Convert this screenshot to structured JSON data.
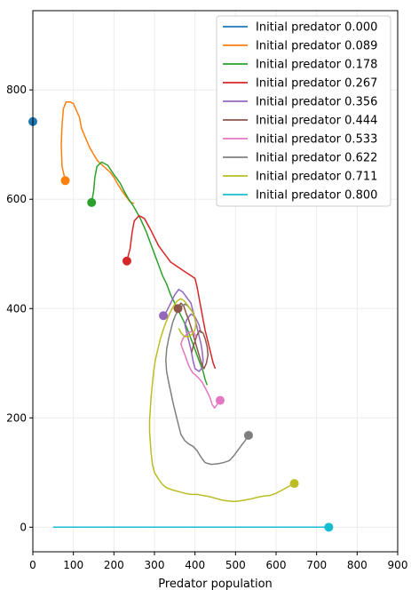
{
  "chart_data": {
    "type": "line",
    "title": "",
    "xlabel": "Predator population",
    "ylabel": "",
    "xlim": [
      0,
      900
    ],
    "ylim": [
      -45,
      945
    ],
    "xticks": [
      0,
      100,
      200,
      300,
      400,
      500,
      600,
      700,
      800,
      900
    ],
    "yticks": [
      0,
      200,
      400,
      600,
      800
    ],
    "grid": true,
    "legend_position": "top-right",
    "series": [
      {
        "name": "Initial predator 0.000",
        "color": "#1f77b4",
        "points": [
          [
            0,
            742
          ]
        ],
        "end": [
          0,
          742
        ]
      },
      {
        "name": "Initial predator 0.089",
        "color": "#ff7f0e",
        "points": [
          [
            80,
            634
          ],
          [
            72,
            660
          ],
          [
            70,
            700
          ],
          [
            72,
            735
          ],
          [
            75,
            765
          ],
          [
            82,
            778
          ],
          [
            92,
            778
          ],
          [
            100,
            775
          ],
          [
            106,
            765
          ],
          [
            115,
            750
          ],
          [
            120,
            730
          ],
          [
            130,
            712
          ],
          [
            140,
            695
          ],
          [
            150,
            682
          ],
          [
            160,
            670
          ],
          [
            175,
            660
          ],
          [
            190,
            650
          ],
          [
            200,
            640
          ],
          [
            210,
            627
          ],
          [
            220,
            615
          ],
          [
            230,
            605
          ],
          [
            240,
            595
          ],
          [
            250,
            592
          ]
        ],
        "end": [
          80,
          634
        ]
      },
      {
        "name": "Initial predator 0.178",
        "color": "#2ca02c",
        "points": [
          [
            145,
            594
          ],
          [
            150,
            615
          ],
          [
            153,
            640
          ],
          [
            158,
            660
          ],
          [
            170,
            668
          ],
          [
            185,
            662
          ],
          [
            200,
            645
          ],
          [
            215,
            630
          ],
          [
            225,
            615
          ],
          [
            235,
            602
          ],
          [
            250,
            585
          ],
          [
            265,
            565
          ],
          [
            280,
            540
          ],
          [
            290,
            520
          ],
          [
            300,
            500
          ],
          [
            310,
            480
          ],
          [
            320,
            460
          ],
          [
            330,
            445
          ],
          [
            340,
            425
          ],
          [
            350,
            410
          ],
          [
            360,
            395
          ],
          [
            370,
            380
          ],
          [
            380,
            365
          ],
          [
            390,
            345
          ],
          [
            400,
            325
          ],
          [
            410,
            305
          ],
          [
            420,
            285
          ],
          [
            425,
            270
          ],
          [
            430,
            260
          ]
        ],
        "end": [
          145,
          594
        ]
      },
      {
        "name": "Initial predator 0.267",
        "color": "#d62728",
        "points": [
          [
            232,
            487
          ],
          [
            240,
            510
          ],
          [
            245,
            540
          ],
          [
            250,
            560
          ],
          [
            262,
            570
          ],
          [
            275,
            565
          ],
          [
            290,
            545
          ],
          [
            300,
            530
          ],
          [
            310,
            515
          ],
          [
            320,
            505
          ],
          [
            330,
            495
          ],
          [
            340,
            485
          ],
          [
            350,
            480
          ],
          [
            360,
            475
          ],
          [
            370,
            470
          ],
          [
            380,
            465
          ],
          [
            390,
            460
          ],
          [
            400,
            455
          ],
          [
            405,
            440
          ],
          [
            410,
            420
          ],
          [
            415,
            400
          ],
          [
            420,
            380
          ],
          [
            425,
            360
          ],
          [
            430,
            345
          ],
          [
            435,
            330
          ],
          [
            440,
            315
          ],
          [
            445,
            300
          ],
          [
            450,
            290
          ]
        ],
        "end": [
          232,
          487
        ]
      },
      {
        "name": "Initial predator 0.356",
        "color": "#9467bd",
        "points": [
          [
            322,
            387
          ],
          [
            330,
            395
          ],
          [
            340,
            410
          ],
          [
            350,
            425
          ],
          [
            360,
            435
          ],
          [
            370,
            430
          ],
          [
            380,
            420
          ],
          [
            390,
            410
          ],
          [
            395,
            395
          ],
          [
            400,
            380
          ],
          [
            405,
            365
          ],
          [
            410,
            350
          ],
          [
            415,
            335
          ],
          [
            418,
            320
          ],
          [
            420,
            305
          ],
          [
            418,
            292
          ],
          [
            410,
            285
          ],
          [
            400,
            290
          ],
          [
            395,
            305
          ],
          [
            390,
            325
          ],
          [
            385,
            340
          ],
          [
            380,
            355
          ],
          [
            375,
            370
          ],
          [
            380,
            380
          ],
          [
            390,
            390
          ],
          [
            400,
            385
          ],
          [
            410,
            370
          ],
          [
            415,
            355
          ]
        ],
        "end": [
          322,
          387
        ]
      },
      {
        "name": "Initial predator 0.444",
        "color": "#8c564b",
        "points": [
          [
            358,
            400
          ],
          [
            365,
            410
          ],
          [
            372,
            405
          ],
          [
            378,
            392
          ],
          [
            385,
            378
          ],
          [
            392,
            362
          ],
          [
            398,
            346
          ],
          [
            404,
            330
          ],
          [
            410,
            315
          ],
          [
            416,
            300
          ],
          [
            422,
            290
          ],
          [
            428,
            300
          ],
          [
            432,
            315
          ],
          [
            430,
            330
          ],
          [
            425,
            345
          ],
          [
            420,
            355
          ],
          [
            412,
            360
          ],
          [
            405,
            352
          ],
          [
            400,
            340
          ],
          [
            395,
            330
          ],
          [
            392,
            320
          ]
        ],
        "end": [
          358,
          400
        ]
      },
      {
        "name": "Initial predator 0.533",
        "color": "#e377c2",
        "points": [
          [
            462,
            232
          ],
          [
            455,
            225
          ],
          [
            448,
            218
          ],
          [
            442,
            225
          ],
          [
            438,
            235
          ],
          [
            432,
            245
          ],
          [
            425,
            255
          ],
          [
            418,
            265
          ],
          [
            410,
            272
          ],
          [
            402,
            278
          ],
          [
            395,
            282
          ],
          [
            390,
            288
          ],
          [
            385,
            295
          ],
          [
            380,
            305
          ],
          [
            375,
            315
          ],
          [
            370,
            325
          ],
          [
            365,
            335
          ],
          [
            370,
            345
          ],
          [
            378,
            352
          ],
          [
            385,
            356
          ],
          [
            392,
            358
          ],
          [
            398,
            355
          ],
          [
            403,
            348
          ]
        ],
        "end": [
          462,
          232
        ]
      },
      {
        "name": "Initial predator 0.622",
        "color": "#7f7f7f",
        "points": [
          [
            532,
            168
          ],
          [
            525,
            160
          ],
          [
            515,
            150
          ],
          [
            505,
            140
          ],
          [
            495,
            130
          ],
          [
            485,
            122
          ],
          [
            470,
            118
          ],
          [
            455,
            116
          ],
          [
            440,
            115
          ],
          [
            425,
            118
          ],
          [
            415,
            128
          ],
          [
            405,
            140
          ],
          [
            395,
            148
          ],
          [
            385,
            152
          ],
          [
            375,
            158
          ],
          [
            365,
            170
          ],
          [
            360,
            185
          ],
          [
            355,
            200
          ],
          [
            350,
            215
          ],
          [
            345,
            230
          ],
          [
            340,
            248
          ],
          [
            335,
            265
          ],
          [
            330,
            285
          ],
          [
            328,
            305
          ],
          [
            330,
            325
          ],
          [
            335,
            345
          ],
          [
            340,
            360
          ],
          [
            345,
            375
          ],
          [
            352,
            388
          ],
          [
            360,
            398
          ],
          [
            368,
            405
          ],
          [
            375,
            408
          ],
          [
            382,
            405
          ],
          [
            390,
            398
          ],
          [
            398,
            390
          ]
        ],
        "end": [
          532,
          168
        ]
      },
      {
        "name": "Initial predator 0.711",
        "color": "#bcbd22",
        "points": [
          [
            645,
            80
          ],
          [
            630,
            74
          ],
          [
            615,
            68
          ],
          [
            600,
            62
          ],
          [
            585,
            58
          ],
          [
            570,
            57
          ],
          [
            555,
            55
          ],
          [
            540,
            52
          ],
          [
            525,
            50
          ],
          [
            510,
            48
          ],
          [
            495,
            47
          ],
          [
            480,
            48
          ],
          [
            465,
            50
          ],
          [
            450,
            53
          ],
          [
            435,
            56
          ],
          [
            420,
            58
          ],
          [
            405,
            60
          ],
          [
            390,
            60
          ],
          [
            375,
            62
          ],
          [
            360,
            65
          ],
          [
            345,
            68
          ],
          [
            330,
            72
          ],
          [
            320,
            78
          ],
          [
            310,
            88
          ],
          [
            300,
            100
          ],
          [
            295,
            115
          ],
          [
            292,
            135
          ],
          [
            290,
            155
          ],
          [
            288,
            175
          ],
          [
            288,
            195
          ],
          [
            290,
            218
          ],
          [
            292,
            240
          ],
          [
            295,
            262
          ],
          [
            298,
            285
          ],
          [
            302,
            305
          ],
          [
            308,
            325
          ],
          [
            315,
            345
          ],
          [
            322,
            362
          ],
          [
            330,
            378
          ],
          [
            338,
            392
          ],
          [
            345,
            402
          ],
          [
            352,
            410
          ],
          [
            358,
            415
          ],
          [
            365,
            418
          ],
          [
            372,
            415
          ],
          [
            380,
            408
          ],
          [
            388,
            400
          ],
          [
            395,
            392
          ],
          [
            400,
            382
          ],
          [
            402,
            372
          ],
          [
            400,
            362
          ],
          [
            395,
            355
          ],
          [
            388,
            350
          ],
          [
            380,
            348
          ],
          [
            372,
            350
          ],
          [
            365,
            356
          ],
          [
            360,
            364
          ]
        ],
        "end": [
          645,
          80
        ]
      },
      {
        "name": "Initial predator 0.800",
        "color": "#17becf",
        "points": [
          [
            730,
            0
          ],
          [
            50,
            0
          ]
        ],
        "end": [
          730,
          0
        ]
      }
    ]
  }
}
